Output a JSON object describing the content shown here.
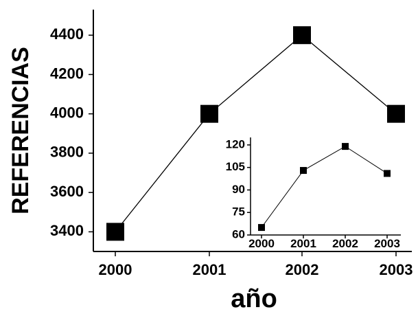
{
  "chart_data": [
    {
      "type": "line",
      "xlabel": "año",
      "ylabel": "REFERENCIAS",
      "x": [
        "2000",
        "2001",
        "2002",
        "2003"
      ],
      "series": [
        {
          "values": [
            3400,
            4000,
            4400,
            4000
          ]
        }
      ],
      "ylim": [
        3300,
        4530
      ],
      "yticks": [
        "3400",
        "3600",
        "3800",
        "4000",
        "4200",
        "4400"
      ],
      "marker": "square",
      "color": "#000000",
      "grid": false
    },
    {
      "type": "line",
      "x": [
        "2000",
        "2001",
        "2002",
        "2003"
      ],
      "series": [
        {
          "values": [
            65,
            103,
            119,
            101
          ]
        }
      ],
      "ylim": [
        60,
        125
      ],
      "yticks": [
        "60",
        "75",
        "90",
        "105",
        "120"
      ],
      "marker": "square",
      "color": "#000000",
      "grid": false
    }
  ]
}
